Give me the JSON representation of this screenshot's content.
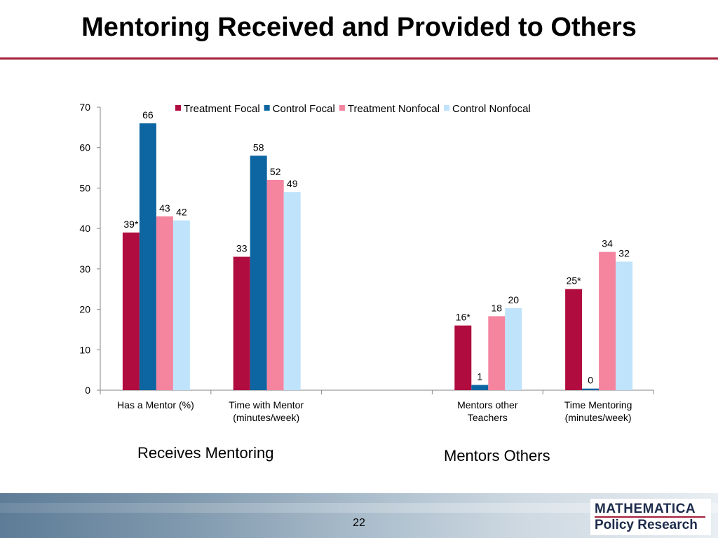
{
  "slide": {
    "title": "Mentoring Received and Provided to Others",
    "page_number": "22"
  },
  "logo": {
    "line1": "MATHEMATICA",
    "line2": "Policy Research"
  },
  "group_labels": {
    "left": "Receives Mentoring",
    "right": "Mentors Others"
  },
  "colors": {
    "treatment_focal": "#b00c3f",
    "control_focal": "#0d65a1",
    "treatment_nonfocal": "#f5849f",
    "control_nonfocal": "#bfe3fa",
    "accent_rule": "#a31f3a"
  },
  "chart_data": {
    "type": "bar",
    "title": "",
    "xlabel": "",
    "ylabel": "",
    "ylim": [
      0,
      70
    ],
    "yticks": [
      0,
      10,
      20,
      30,
      40,
      50,
      60,
      70
    ],
    "legend_position": "top",
    "categories": [
      [
        "Has a Mentor (%)"
      ],
      [
        "Time with Mentor",
        "(minutes/week)"
      ],
      [],
      [
        "Mentors other",
        "Teachers"
      ],
      [
        "Time Mentoring",
        "(minutes/week)"
      ]
    ],
    "series": [
      {
        "name": "Treatment Focal",
        "color": "#b00c3f",
        "values": [
          39,
          33,
          null,
          16,
          25
        ],
        "labels": [
          "39*",
          "33",
          "",
          "16*",
          "25*"
        ]
      },
      {
        "name": "Control Focal",
        "color": "#0d65a1",
        "values": [
          66,
          58,
          null,
          1.3,
          0.4
        ],
        "labels": [
          "66",
          "58",
          "",
          "1",
          "0"
        ]
      },
      {
        "name": "Treatment Nonfocal",
        "color": "#f5849f",
        "values": [
          43,
          52,
          null,
          18.3,
          34.2
        ],
        "labels": [
          "43",
          "52",
          "",
          "18",
          "34"
        ]
      },
      {
        "name": "Control Nonfocal",
        "color": "#bfe3fa",
        "values": [
          42,
          49,
          null,
          20.3,
          31.8
        ],
        "labels": [
          "42",
          "49",
          "",
          "20",
          "32"
        ]
      }
    ]
  }
}
